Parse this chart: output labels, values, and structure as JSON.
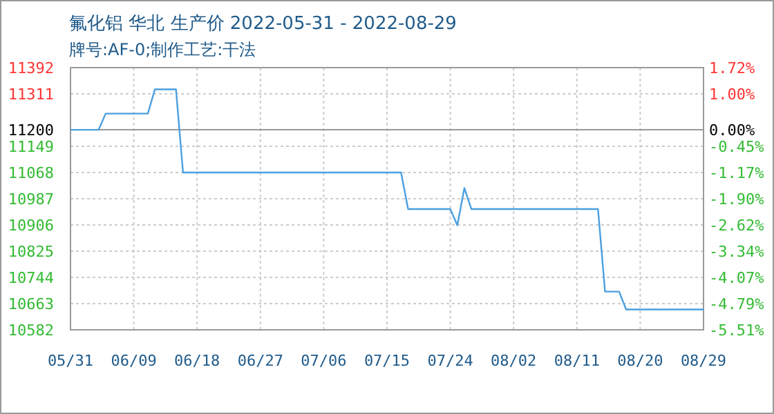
{
  "chart_data": {
    "type": "line",
    "title": "氟化铝 华北 生产价 2022-05-31 - 2022-08-29",
    "subtitle": "牌号:AF-0;制作工艺:干法",
    "series": [
      {
        "color": "#4a9fe0",
        "x": [
          "2022-05-31",
          "2022-06-04",
          "2022-06-05",
          "2022-06-11",
          "2022-06-12",
          "2022-06-15",
          "2022-06-16",
          "2022-07-17",
          "2022-07-18",
          "2022-07-24",
          "2022-07-25",
          "2022-07-26",
          "2022-07-27",
          "2022-08-14",
          "2022-08-15",
          "2022-08-17",
          "2022-08-18",
          "2022-08-29"
        ],
        "values": [
          11200,
          11200,
          11250,
          11250,
          11325,
          11325,
          11068,
          11068,
          10955,
          10955,
          10905,
          11020,
          10955,
          10955,
          10700,
          10700,
          10645,
          10645
        ]
      }
    ],
    "xlim": [
      "2022-05-31",
      "2022-08-29"
    ],
    "xticks": [
      {
        "value": "2022-05-31",
        "label": "05/31"
      },
      {
        "value": "2022-06-09",
        "label": "06/09"
      },
      {
        "value": "2022-06-18",
        "label": "06/18"
      },
      {
        "value": "2022-06-27",
        "label": "06/27"
      },
      {
        "value": "2022-07-06",
        "label": "07/06"
      },
      {
        "value": "2022-07-15",
        "label": "07/15"
      },
      {
        "value": "2022-07-24",
        "label": "07/24"
      },
      {
        "value": "2022-08-02",
        "label": "08/02"
      },
      {
        "value": "2022-08-11",
        "label": "08/11"
      },
      {
        "value": "2022-08-20",
        "label": "08/20"
      },
      {
        "value": "2022-08-29",
        "label": "08/29"
      }
    ],
    "ylim": [
      10582,
      11392
    ],
    "yticks": [
      10582,
      10663,
      10744,
      10825,
      10906,
      10987,
      11068,
      11149,
      11200,
      11311,
      11392
    ],
    "y2lim": [
      -5.51,
      1.72
    ],
    "y2ticks": [
      {
        "value": -5.51,
        "label": "-5.51%"
      },
      {
        "value": -4.79,
        "label": "-4.79%"
      },
      {
        "value": -4.07,
        "label": "-4.07%"
      },
      {
        "value": -3.34,
        "label": "-3.34%"
      },
      {
        "value": -2.62,
        "label": "-2.62%"
      },
      {
        "value": -1.9,
        "label": "-1.90%"
      },
      {
        "value": -1.17,
        "label": "-1.17%"
      },
      {
        "value": -0.45,
        "label": "-0.45%"
      },
      {
        "value": 0,
        "label": "0.00%"
      },
      {
        "value": 1,
        "label": "1.00%"
      },
      {
        "value": 1.72,
        "label": "1.72%"
      }
    ],
    "ref_lines": [
      {
        "axis": "y",
        "value": 11200,
        "color": "#999999"
      }
    ],
    "grid": true
  }
}
